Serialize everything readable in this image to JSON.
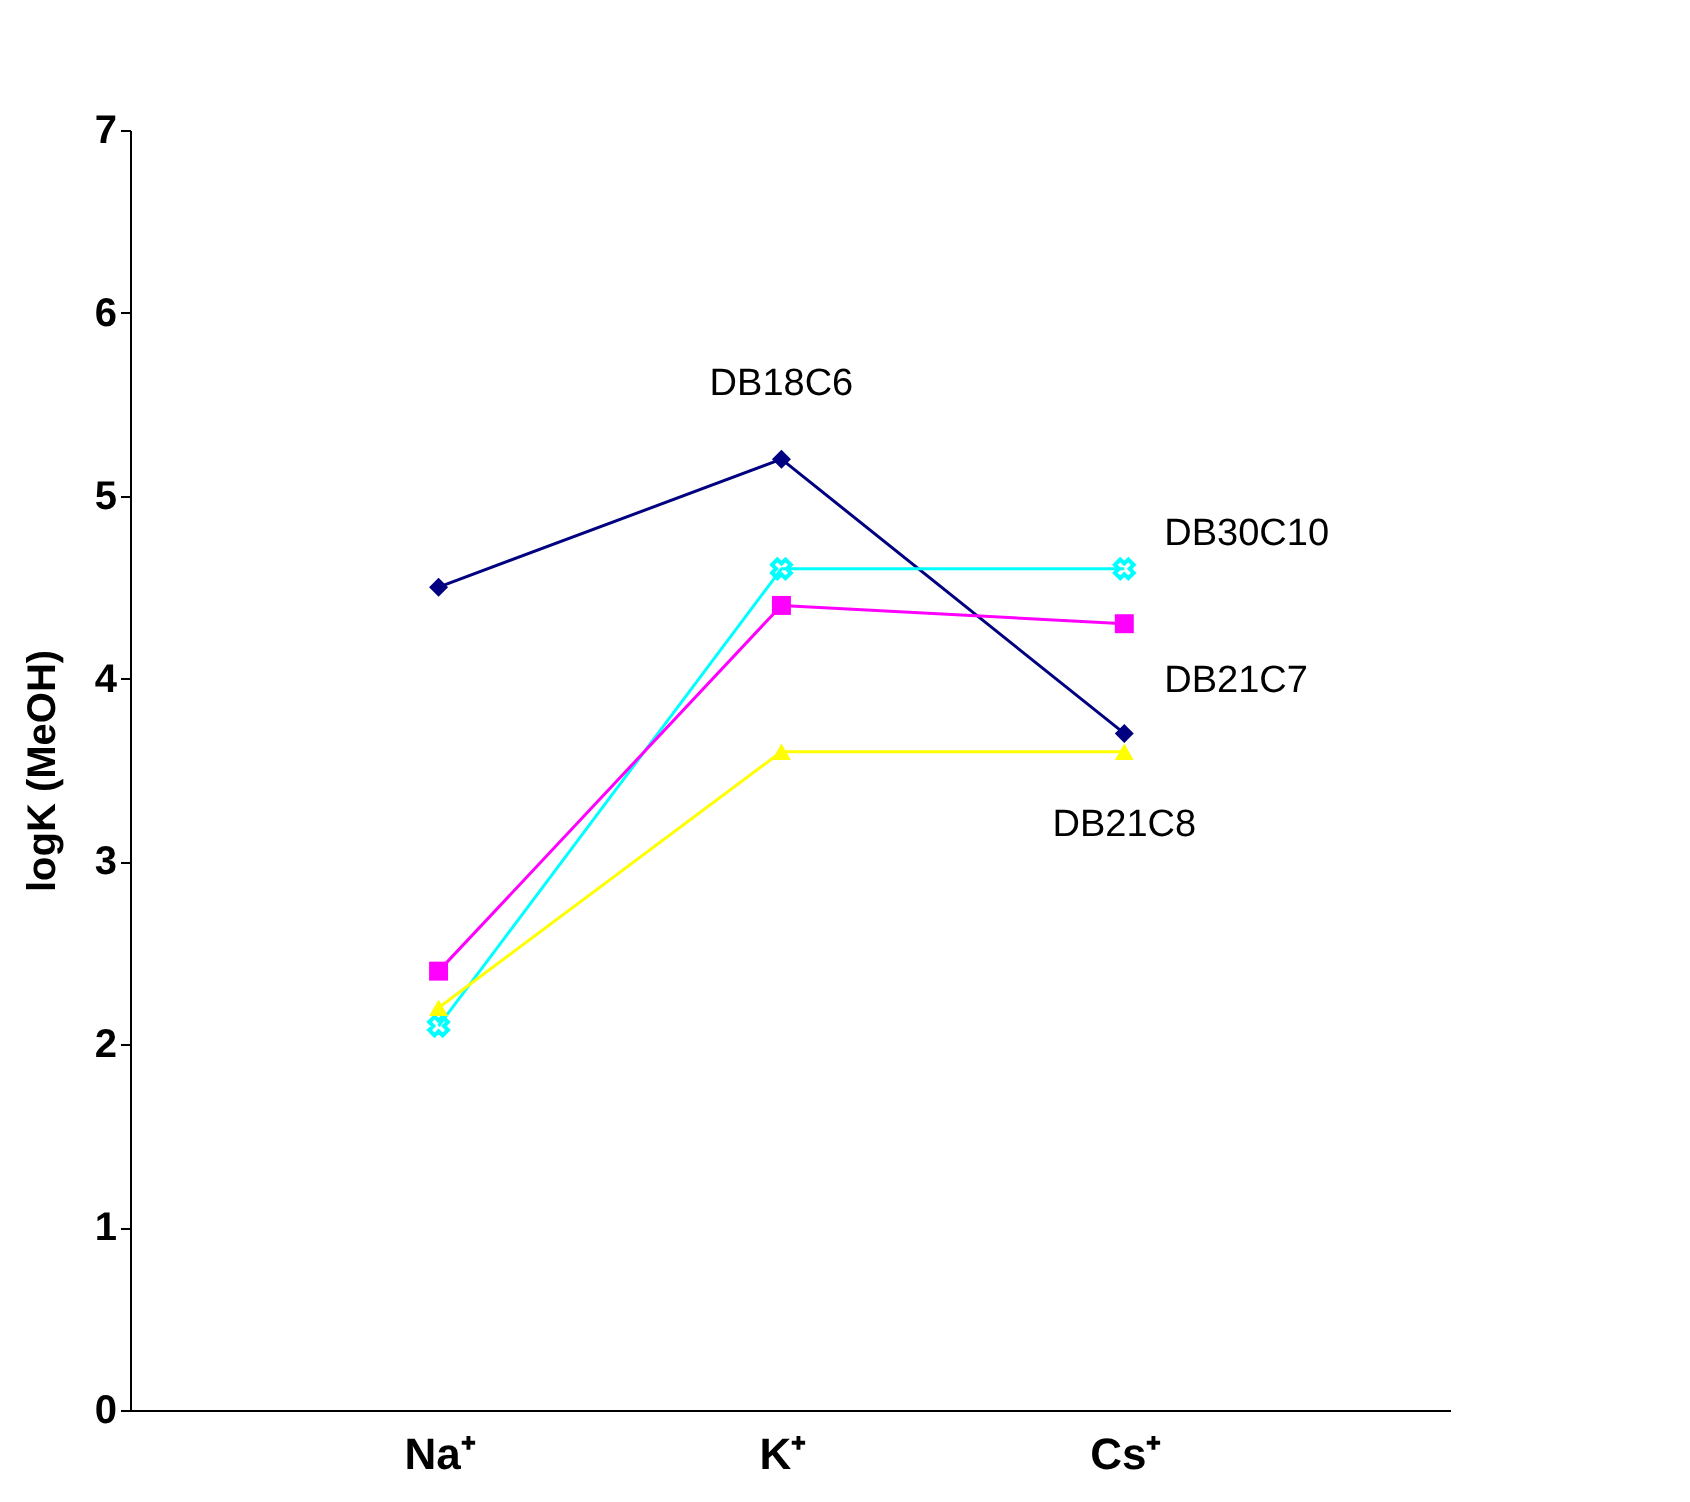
{
  "chart_data": {
    "type": "line",
    "ylabel": "logK (MeOH)",
    "categories": [
      "Na⁺",
      "K⁺",
      "Cs⁺"
    ],
    "ylim": [
      0,
      7
    ],
    "yticks": [
      0,
      1,
      2,
      3,
      4,
      5,
      6,
      7
    ],
    "grid": false,
    "series": [
      {
        "name": "DB18C6",
        "color": "#000080",
        "marker": "diamond",
        "values": [
          4.5,
          5.2,
          3.7
        ]
      },
      {
        "name": "DB30C10",
        "color": "#00ffff",
        "marker": "cross",
        "values": [
          2.1,
          4.6,
          4.6
        ]
      },
      {
        "name": "DB21C7",
        "color": "#ff00ff",
        "marker": "square",
        "values": [
          2.4,
          4.4,
          4.3
        ]
      },
      {
        "name": "DB21C8",
        "color": "#ffff00",
        "marker": "triangle",
        "values": [
          2.2,
          3.6,
          3.6
        ]
      }
    ]
  }
}
